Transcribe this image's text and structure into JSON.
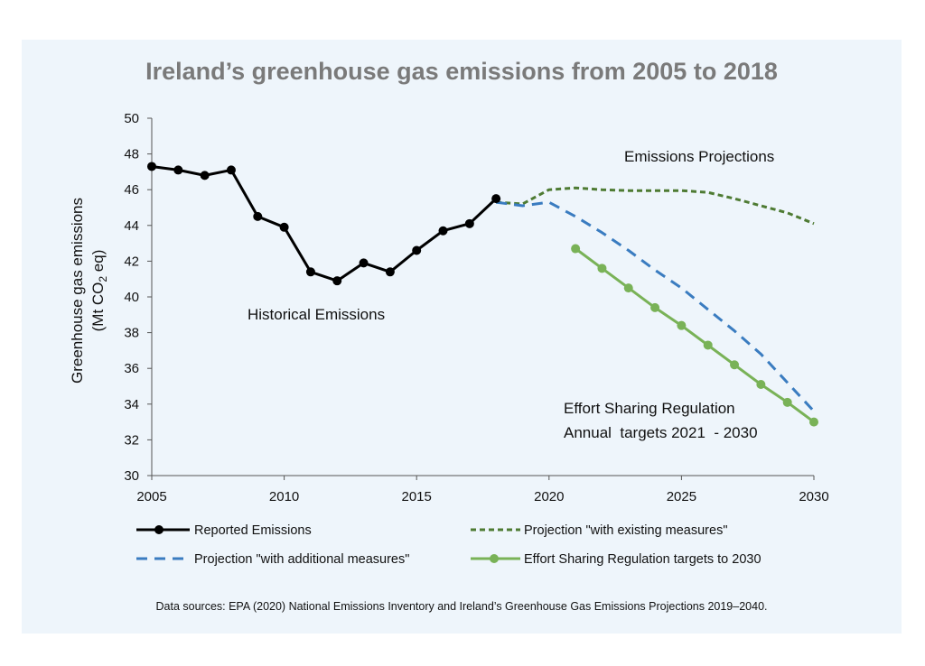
{
  "chart_data": {
    "type": "line",
    "title": "Ireland’s greenhouse gas emissions from 2005 to 2018",
    "ylabel_line1": "Greenhouse gas emissions",
    "ylabel_line2_pre": "(Mt CO",
    "ylabel_line2_sub": "2",
    "ylabel_line2_post": " eq)",
    "ylim": [
      30,
      50
    ],
    "yticks": [
      30,
      32,
      34,
      36,
      38,
      40,
      42,
      44,
      46,
      48,
      50
    ],
    "xlim": [
      2005,
      2030
    ],
    "xticks": [
      2005,
      2010,
      2015,
      2020,
      2025,
      2030
    ],
    "grid": false,
    "legend_position": "bottom",
    "series": [
      {
        "name": "Reported Emissions",
        "color": "#000000",
        "style": "solid-markers",
        "x": [
          2005,
          2006,
          2007,
          2008,
          2009,
          2010,
          2011,
          2012,
          2013,
          2014,
          2015,
          2016,
          2017,
          2018
        ],
        "y": [
          47.3,
          47.1,
          46.8,
          47.1,
          44.5,
          43.9,
          41.4,
          40.9,
          41.9,
          41.4,
          42.6,
          43.7,
          44.1,
          45.5
        ]
      },
      {
        "name": "Projection \"with existing measures\"",
        "color": "#4e7b33",
        "style": "dotted",
        "x": [
          2018,
          2019,
          2020,
          2021,
          2022,
          2023,
          2024,
          2025,
          2026,
          2027,
          2028,
          2029,
          2030
        ],
        "y": [
          45.3,
          45.2,
          46.0,
          46.1,
          46.0,
          45.95,
          45.95,
          45.95,
          45.85,
          45.5,
          45.1,
          44.7,
          44.1
        ]
      },
      {
        "name": "Projection \"with additional measures\"",
        "color": "#3a7cc0",
        "style": "dashed",
        "x": [
          2018,
          2019,
          2020,
          2021,
          2022,
          2023,
          2024,
          2025,
          2026,
          2027,
          2028,
          2029,
          2030
        ],
        "y": [
          45.3,
          45.1,
          45.3,
          44.5,
          43.6,
          42.6,
          41.5,
          40.5,
          39.3,
          38.1,
          36.8,
          35.2,
          33.6
        ]
      },
      {
        "name": "Effort Sharing Regulation targets to 2030",
        "color": "#79b257",
        "style": "solid-markers",
        "x": [
          2021,
          2022,
          2023,
          2024,
          2025,
          2026,
          2027,
          2028,
          2029,
          2030
        ],
        "y": [
          42.7,
          41.6,
          40.5,
          39.4,
          38.4,
          37.3,
          36.2,
          35.1,
          34.1,
          33.0
        ]
      }
    ],
    "annotations": {
      "historical": "Historical Emissions",
      "projections": "Emissions Projections",
      "esr_line1": "Effort Sharing Regulation",
      "esr_line2": "Annual  targets 2021  - 2030"
    },
    "source": "Data sources: EPA (2020) National Emissions Inventory and Ireland’s Greenhouse Gas Emissions Projections 2019–2040."
  }
}
